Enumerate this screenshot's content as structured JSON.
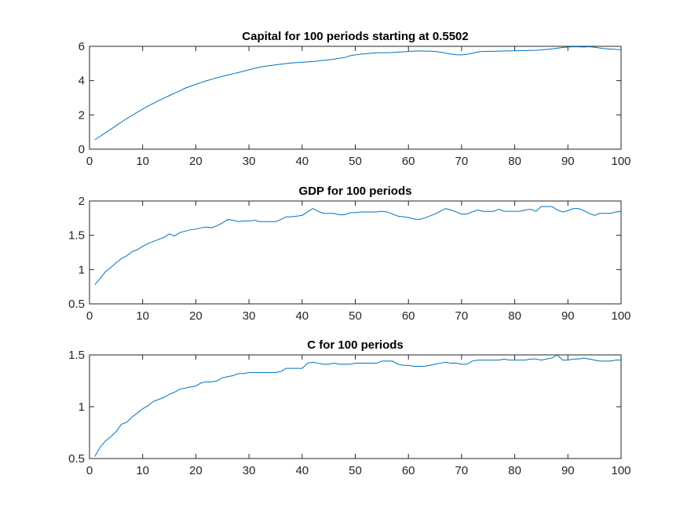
{
  "figure": {
    "background": "#ffffff",
    "line_color": "#0072BD",
    "axis_color": "#262626"
  },
  "chart_data": [
    {
      "type": "line",
      "title": "Capital for 100 periods starting at 0.5502",
      "xlabel": "",
      "ylabel": "",
      "xlim": [
        0,
        100
      ],
      "ylim": [
        0,
        6
      ],
      "xticks": [
        0,
        10,
        20,
        30,
        40,
        50,
        60,
        70,
        80,
        90,
        100
      ],
      "yticks": [
        0,
        2,
        4,
        6
      ],
      "grid": false,
      "series": [
        {
          "x": [
            1,
            2,
            3,
            4,
            5,
            6,
            7,
            8,
            9,
            10,
            11,
            12,
            13,
            14,
            15,
            16,
            17,
            18,
            19,
            20,
            21,
            22,
            23,
            24,
            25,
            26,
            27,
            28,
            29,
            30,
            31,
            32,
            33,
            34,
            35,
            36,
            37,
            38,
            39,
            40,
            41,
            42,
            43,
            44,
            45,
            46,
            47,
            48,
            49,
            50,
            51,
            52,
            53,
            54,
            55,
            56,
            57,
            58,
            59,
            60,
            61,
            62,
            63,
            64,
            65,
            66,
            67,
            68,
            69,
            70,
            71,
            72,
            73,
            74,
            75,
            76,
            77,
            78,
            79,
            80,
            81,
            82,
            83,
            84,
            85,
            86,
            87,
            88,
            89,
            90,
            91,
            92,
            93,
            94,
            95,
            96,
            97,
            98,
            99,
            100
          ],
          "values": [
            0.55,
            0.75,
            0.96,
            1.16,
            1.37,
            1.58,
            1.78,
            1.97,
            2.16,
            2.34,
            2.51,
            2.67,
            2.83,
            2.98,
            3.12,
            3.27,
            3.41,
            3.56,
            3.67,
            3.78,
            3.89,
            3.99,
            4.08,
            4.17,
            4.25,
            4.33,
            4.4,
            4.47,
            4.55,
            4.63,
            4.71,
            4.78,
            4.84,
            4.88,
            4.92,
            4.96,
            5.0,
            5.03,
            5.05,
            5.07,
            5.09,
            5.11,
            5.14,
            5.18,
            5.21,
            5.25,
            5.3,
            5.35,
            5.45,
            5.5,
            5.54,
            5.57,
            5.6,
            5.62,
            5.63,
            5.63,
            5.64,
            5.66,
            5.68,
            5.7,
            5.72,
            5.73,
            5.72,
            5.72,
            5.7,
            5.66,
            5.6,
            5.55,
            5.51,
            5.5,
            5.53,
            5.6,
            5.67,
            5.7,
            5.71,
            5.71,
            5.72,
            5.73,
            5.73,
            5.74,
            5.74,
            5.75,
            5.76,
            5.77,
            5.79,
            5.82,
            5.85,
            5.89,
            5.93,
            5.96,
            5.97,
            5.97,
            5.96,
            5.98,
            5.95,
            5.9,
            5.86,
            5.84,
            5.82,
            5.8
          ]
        }
      ]
    },
    {
      "type": "line",
      "title": "GDP for 100 periods",
      "xlabel": "",
      "ylabel": "",
      "xlim": [
        0,
        100
      ],
      "ylim": [
        0.5,
        2
      ],
      "xticks": [
        0,
        10,
        20,
        30,
        40,
        50,
        60,
        70,
        80,
        90,
        100
      ],
      "yticks": [
        0.5,
        1,
        1.5,
        2
      ],
      "ytick_labels": [
        "0.5",
        "1",
        "1.5",
        "2"
      ],
      "grid": false,
      "series": [
        {
          "x": [
            1,
            2,
            3,
            4,
            5,
            6,
            7,
            8,
            9,
            10,
            11,
            12,
            13,
            14,
            15,
            16,
            17,
            18,
            19,
            20,
            21,
            22,
            23,
            24,
            25,
            26,
            27,
            28,
            29,
            30,
            31,
            32,
            33,
            34,
            35,
            36,
            37,
            38,
            39,
            40,
            41,
            42,
            43,
            44,
            45,
            46,
            47,
            48,
            49,
            50,
            51,
            52,
            53,
            54,
            55,
            56,
            57,
            58,
            59,
            60,
            61,
            62,
            63,
            64,
            65,
            66,
            67,
            68,
            69,
            70,
            71,
            72,
            73,
            74,
            75,
            76,
            77,
            78,
            79,
            80,
            81,
            82,
            83,
            84,
            85,
            86,
            87,
            88,
            89,
            90,
            91,
            92,
            93,
            94,
            95,
            96,
            97,
            98,
            99,
            100
          ],
          "values": [
            0.78,
            0.87,
            0.97,
            1.03,
            1.1,
            1.16,
            1.2,
            1.26,
            1.29,
            1.34,
            1.38,
            1.41,
            1.44,
            1.47,
            1.52,
            1.49,
            1.54,
            1.56,
            1.58,
            1.59,
            1.61,
            1.62,
            1.61,
            1.64,
            1.68,
            1.73,
            1.72,
            1.7,
            1.71,
            1.71,
            1.72,
            1.7,
            1.7,
            1.7,
            1.7,
            1.73,
            1.77,
            1.77,
            1.78,
            1.79,
            1.84,
            1.89,
            1.85,
            1.82,
            1.82,
            1.82,
            1.8,
            1.8,
            1.83,
            1.83,
            1.84,
            1.84,
            1.84,
            1.84,
            1.85,
            1.84,
            1.81,
            1.78,
            1.77,
            1.76,
            1.74,
            1.73,
            1.75,
            1.78,
            1.81,
            1.85,
            1.89,
            1.87,
            1.84,
            1.81,
            1.81,
            1.84,
            1.87,
            1.85,
            1.85,
            1.85,
            1.88,
            1.85,
            1.85,
            1.85,
            1.85,
            1.87,
            1.88,
            1.85,
            1.92,
            1.92,
            1.92,
            1.87,
            1.84,
            1.86,
            1.89,
            1.89,
            1.86,
            1.82,
            1.79,
            1.82,
            1.82,
            1.82,
            1.84,
            1.85
          ]
        }
      ]
    },
    {
      "type": "line",
      "title": "C for 100 periods",
      "xlabel": "",
      "ylabel": "",
      "xlim": [
        0,
        100
      ],
      "ylim": [
        0.5,
        1.5
      ],
      "xticks": [
        0,
        10,
        20,
        30,
        40,
        50,
        60,
        70,
        80,
        90,
        100
      ],
      "yticks": [
        0.5,
        1,
        1.5
      ],
      "ytick_labels": [
        "0.5",
        "1",
        "1.5"
      ],
      "grid": false,
      "series": [
        {
          "x": [
            1,
            2,
            3,
            4,
            5,
            6,
            7,
            8,
            9,
            10,
            11,
            12,
            13,
            14,
            15,
            16,
            17,
            18,
            19,
            20,
            21,
            22,
            23,
            24,
            25,
            26,
            27,
            28,
            29,
            30,
            31,
            32,
            33,
            34,
            35,
            36,
            37,
            38,
            39,
            40,
            41,
            42,
            43,
            44,
            45,
            46,
            47,
            48,
            49,
            50,
            51,
            52,
            53,
            54,
            55,
            56,
            57,
            58,
            59,
            60,
            61,
            62,
            63,
            64,
            65,
            66,
            67,
            68,
            69,
            70,
            71,
            72,
            73,
            74,
            75,
            76,
            77,
            78,
            79,
            80,
            81,
            82,
            83,
            84,
            85,
            86,
            87,
            88,
            89,
            90,
            91,
            92,
            93,
            94,
            95,
            96,
            97,
            98,
            99,
            100
          ],
          "values": [
            0.52,
            0.61,
            0.67,
            0.71,
            0.76,
            0.83,
            0.85,
            0.9,
            0.94,
            0.98,
            1.01,
            1.05,
            1.07,
            1.09,
            1.12,
            1.14,
            1.17,
            1.18,
            1.19,
            1.2,
            1.23,
            1.24,
            1.24,
            1.25,
            1.28,
            1.29,
            1.3,
            1.32,
            1.32,
            1.33,
            1.33,
            1.33,
            1.33,
            1.33,
            1.33,
            1.34,
            1.37,
            1.37,
            1.37,
            1.37,
            1.42,
            1.43,
            1.42,
            1.41,
            1.41,
            1.42,
            1.41,
            1.41,
            1.41,
            1.42,
            1.42,
            1.42,
            1.42,
            1.42,
            1.44,
            1.44,
            1.44,
            1.41,
            1.4,
            1.4,
            1.39,
            1.39,
            1.39,
            1.4,
            1.41,
            1.42,
            1.43,
            1.42,
            1.42,
            1.41,
            1.41,
            1.44,
            1.45,
            1.45,
            1.45,
            1.45,
            1.45,
            1.46,
            1.45,
            1.45,
            1.45,
            1.45,
            1.46,
            1.46,
            1.45,
            1.46,
            1.47,
            1.5,
            1.45,
            1.45,
            1.46,
            1.46,
            1.47,
            1.46,
            1.45,
            1.44,
            1.44,
            1.44,
            1.45,
            1.45
          ]
        }
      ]
    }
  ]
}
